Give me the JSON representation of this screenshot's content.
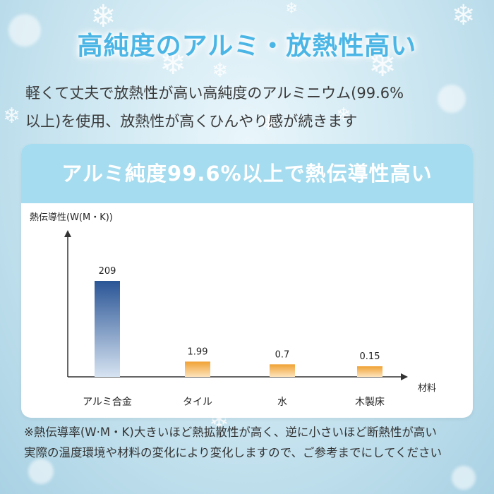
{
  "headline": "高純度のアルミ・放熱性高い",
  "subtext": {
    "line1": "軽くて丈夫で放熱性が高い高純度のアルミニウム(99.6%",
    "line2": "以上)を使用、放熱性が高くひんやり感が続きます"
  },
  "banner": "アルミ純度99.6%以上で熱伝導性高い",
  "footnote": {
    "line1": "※熱伝導率(W·M・K)大きいほど熱拡散性が高く、逆に小さいほど断熱性が高い",
    "line2": "実際の温度環境や材料の変化により変化しますので、ご参考までにしてください"
  },
  "chart_data": {
    "type": "bar",
    "ylabel": "熱伝導性(W(M・K))",
    "xlabel": "材料",
    "categories": [
      "アルミ合金",
      "タイル",
      "水",
      "木製床"
    ],
    "values": [
      209,
      1.99,
      0.7,
      0.15
    ],
    "value_labels": [
      "209",
      "1.99",
      "0.7",
      "0.15"
    ],
    "scale": "non-linear (illustrative)",
    "grid": false,
    "colors": {
      "highlight_top": "#2a5596",
      "highlight_bottom": "#d6e3f1",
      "other_top": "#f0a234",
      "other_bottom": "#fde3bb",
      "axis": "#333333"
    }
  }
}
